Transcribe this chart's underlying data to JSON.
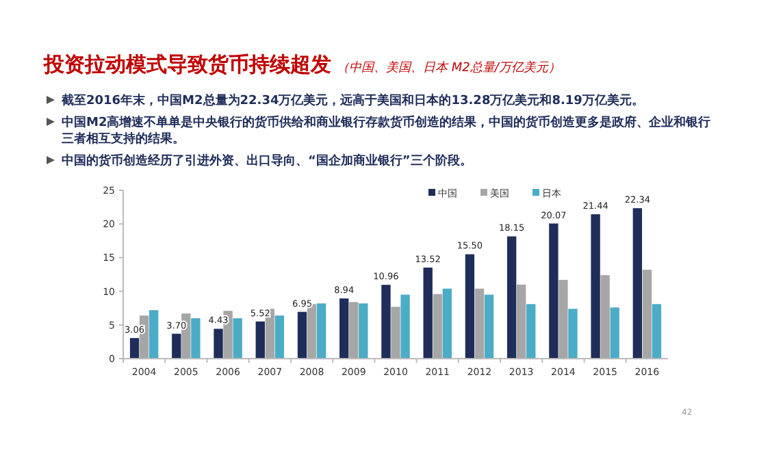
{
  "chart_data": {
    "type": "bar",
    "title": "投资拉动模式导致货币持续超发",
    "subtitle": "（中国、美国、日本 M2总量/万亿美元）",
    "annotations": [
      "截至2016年末，中国M2总量为22.34万亿美元，远高于美国和日本的13.28万亿美元和8.19万亿美元。",
      "中国M2高增速不单单是中央银行的货币供给和商业银行存款货币创造的结果，中国的货币创造更多是政府、企业和银行三者相互支持的结果。",
      "中国的货币创造经历了引进外资、出口导向、“国企加商业银行”三个阶段。",
      "42"
    ],
    "categories": [
      "2004",
      "2005",
      "2006",
      "2007",
      "2008",
      "2009",
      "2010",
      "2011",
      "2012",
      "2013",
      "2014",
      "2015",
      "2016"
    ],
    "series": [
      {
        "name": "中国",
        "color": "#1f2d5a",
        "values": [
          3.06,
          3.7,
          4.43,
          5.52,
          6.95,
          8.94,
          10.96,
          13.52,
          15.5,
          18.15,
          20.07,
          21.44,
          22.34
        ],
        "value_labels": [
          "3.06",
          "3.70",
          "4.43",
          "5.52",
          "6.95",
          "8.94",
          "10.96",
          "13.52",
          "15.50",
          "18.15",
          "20.07",
          "21.44",
          "22.34"
        ]
      },
      {
        "name": "美国",
        "color": "#a6a6a6",
        "values": [
          6.4,
          6.7,
          7.1,
          7.4,
          8.1,
          8.4,
          7.7,
          9.6,
          10.4,
          11.0,
          11.7,
          12.4,
          13.2
        ]
      },
      {
        "name": "日本",
        "color": "#4bacc6",
        "values": [
          7.2,
          6.0,
          6.0,
          6.4,
          8.2,
          8.2,
          9.5,
          10.4,
          9.5,
          8.1,
          7.4,
          7.6,
          8.1
        ]
      }
    ],
    "ylim": [
      0,
      25
    ],
    "yticks": [
      0,
      5,
      10,
      15,
      20,
      25
    ],
    "grid": false,
    "legend": "top right"
  }
}
